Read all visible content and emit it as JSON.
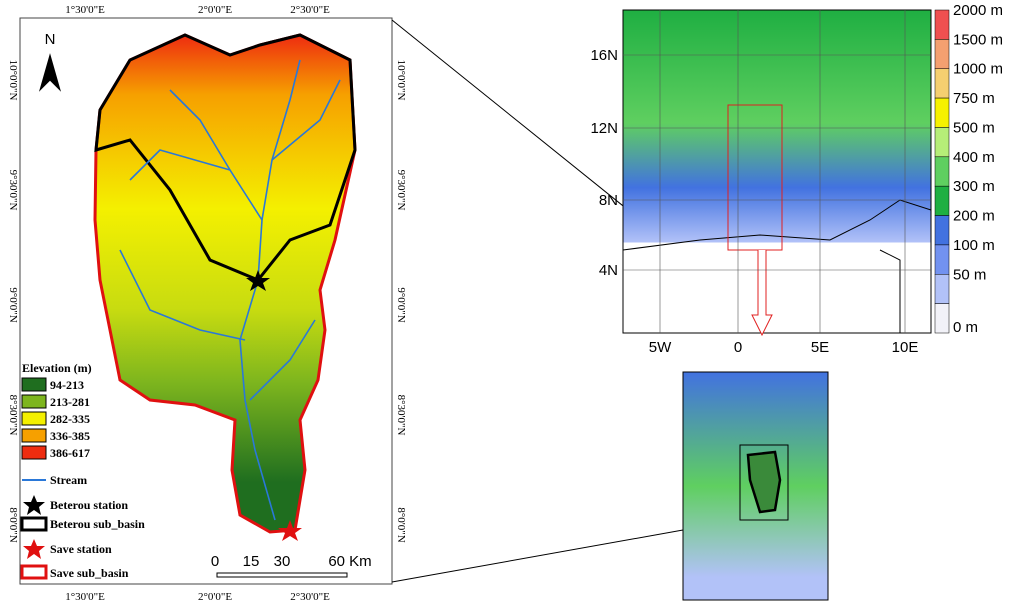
{
  "left_map": {
    "top_lon_labels": [
      "1°30'0\"E",
      "2°0'0\"E",
      "2°30'0\"E"
    ],
    "bottom_lon_labels": [
      "1°30'0\"E",
      "2°0'0\"E",
      "2°30'0\"E"
    ],
    "left_lat_labels": [
      "10°0'0\"N",
      "9°30'0\"N",
      "9°0'0\"N",
      "8°30'0\"N",
      "8°0'0\"N"
    ],
    "right_lat_labels": [
      "10°0'0\"N",
      "9°30'0\"N",
      "9°0'0\"N",
      "8°30'0\"N",
      "8°0'0\"N"
    ],
    "north": "N",
    "legend": {
      "title": "Elevation (m)",
      "classes": [
        {
          "label": "94-213",
          "color": "#1f6e1f"
        },
        {
          "label": "213-281",
          "color": "#7db51e"
        },
        {
          "label": "282-335",
          "color": "#f4f000"
        },
        {
          "label": "336-385",
          "color": "#f6a000"
        },
        {
          "label": "386-617",
          "color": "#ee2c10"
        }
      ],
      "stream": "Stream",
      "beterou_station": "Beterou station",
      "beterou_sub_basin": "Beterou sub_basin",
      "save_station": "Save station",
      "save_sub_basin": "Save sub_basin"
    },
    "scale": [
      "0",
      "15",
      "30",
      "60 Km"
    ]
  },
  "regional_map": {
    "lat_labels": [
      "16N",
      "12N",
      "8N",
      "4N"
    ],
    "lon_labels": [
      "5W",
      "0",
      "5E",
      "10E"
    ],
    "colorbar": [
      {
        "label": "2000 m",
        "color": "#ef5050"
      },
      {
        "label": "1500 m",
        "color": "#f4a070"
      },
      {
        "label": "1000 m",
        "color": "#f5cf70"
      },
      {
        "label": "750 m",
        "color": "#f6f200"
      },
      {
        "label": "500 m",
        "color": "#b6ee78"
      },
      {
        "label": "400 m",
        "color": "#5fcf60"
      },
      {
        "label": "300 m",
        "color": "#1faf42"
      },
      {
        "label": "200 m",
        "color": "#4272e0"
      },
      {
        "label": "100 m",
        "color": "#7292f0"
      },
      {
        "label": "50 m",
        "color": "#b2c2f8"
      },
      {
        "label": "0 m",
        "color": "#f2f2f8"
      }
    ]
  }
}
